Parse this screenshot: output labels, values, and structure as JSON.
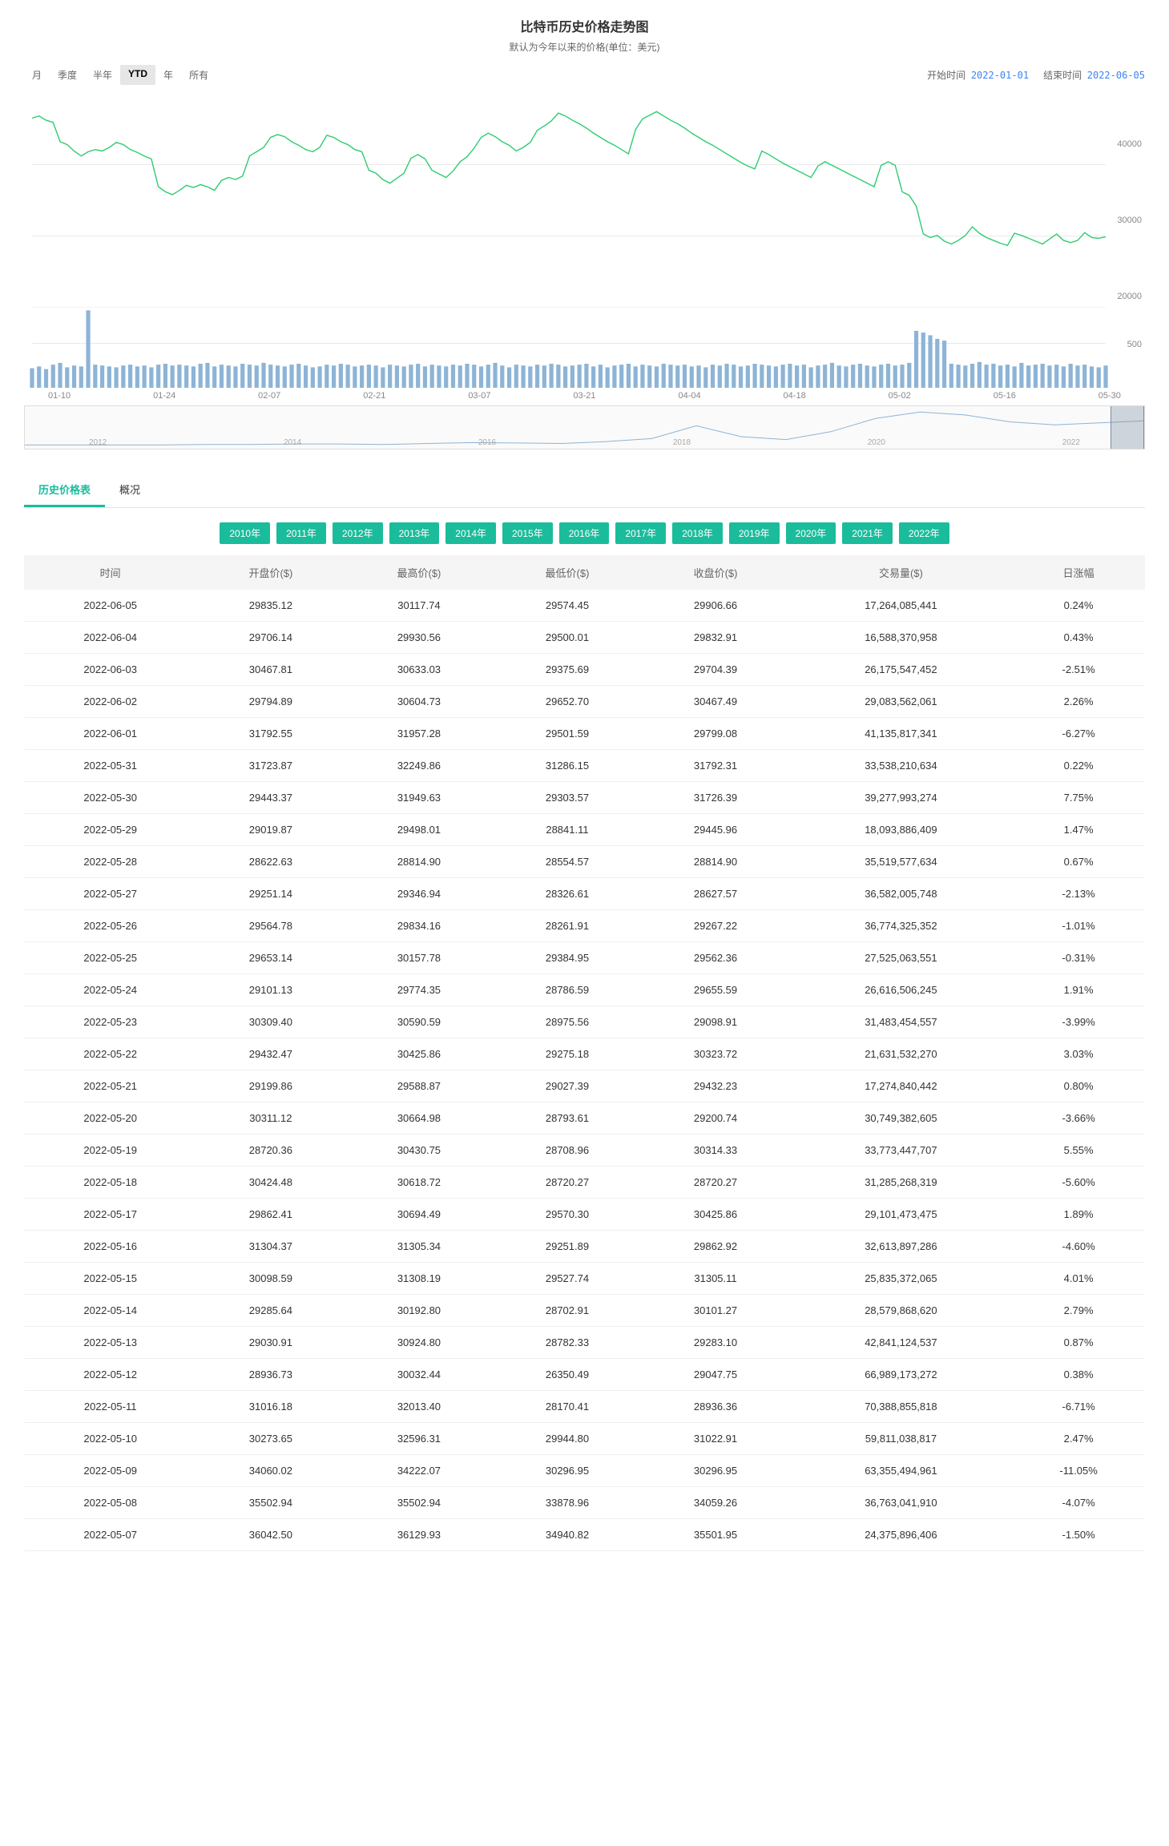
{
  "header": {
    "title": "比特币历史价格走势图",
    "subtitle": "默认为今年以来的价格(单位：美元)"
  },
  "range": {
    "buttons": [
      "月",
      "季度",
      "半年",
      "YTD",
      "年",
      "所有"
    ],
    "active": "YTD",
    "start_label": "开始时间",
    "start_value": "2022-01-01",
    "end_label": "结束时间",
    "end_value": "2022-06-05"
  },
  "price_chart": {
    "type": "line",
    "line_color": "#2ecc71",
    "line_width": 1.4,
    "grid_color": "#e8e8e8",
    "background_color": "#ffffff",
    "ylim": [
      20000,
      48000
    ],
    "yticks": [
      20000,
      30000,
      40000
    ],
    "series": [
      46500,
      46800,
      46200,
      45900,
      43200,
      42800,
      41900,
      41200,
      41800,
      42100,
      41900,
      42400,
      43100,
      42800,
      42100,
      41700,
      41200,
      40800,
      36900,
      36200,
      35800,
      36400,
      37100,
      36800,
      37200,
      36900,
      36400,
      37800,
      38200,
      37900,
      38400,
      41200,
      41800,
      42400,
      43800,
      44200,
      43900,
      43200,
      42700,
      42100,
      41800,
      42400,
      44100,
      43800,
      43200,
      42800,
      42100,
      41800,
      39200,
      38800,
      37900,
      37400,
      38100,
      38800,
      40900,
      41400,
      40800,
      39200,
      38700,
      38200,
      39100,
      40400,
      41100,
      42300,
      43800,
      44400,
      43900,
      43200,
      42700,
      41900,
      42400,
      43100,
      44800,
      45400,
      46100,
      47200,
      46800,
      46200,
      45700,
      45100,
      44400,
      43800,
      43200,
      42700,
      42100,
      41500,
      44900,
      46400,
      46900,
      47400,
      46800,
      46200,
      45700,
      45100,
      44400,
      43800,
      43200,
      42700,
      42100,
      41500,
      40900,
      40300,
      39800,
      39400,
      41900,
      41400,
      40800,
      40200,
      39700,
      39200,
      38700,
      38200,
      39800,
      40400,
      39900,
      39400,
      38900,
      38400,
      37900,
      37400,
      36900,
      39900,
      40400,
      39900,
      36200,
      35700,
      34200,
      30300,
      29800,
      30100,
      29300,
      28900,
      29400,
      30100,
      31300,
      30400,
      29800,
      29400,
      29000,
      28700,
      30400,
      30100,
      29700,
      29300,
      28900,
      29600,
      30300,
      29400,
      29100,
      29400,
      30500,
      29800,
      29700,
      29900
    ]
  },
  "volume_chart": {
    "type": "bar",
    "bar_color": "#8db4d6",
    "grid_color": "#e8e8e8",
    "ylim": [
      0,
      900
    ],
    "yticks": [
      500
    ],
    "series": [
      220,
      240,
      210,
      260,
      280,
      230,
      250,
      240,
      870,
      260,
      250,
      240,
      230,
      250,
      260,
      240,
      250,
      230,
      260,
      270,
      250,
      260,
      250,
      240,
      270,
      280,
      240,
      260,
      250,
      240,
      270,
      260,
      250,
      280,
      260,
      250,
      240,
      260,
      270,
      250,
      230,
      240,
      260,
      250,
      270,
      260,
      240,
      250,
      260,
      250,
      230,
      260,
      250,
      240,
      260,
      270,
      240,
      260,
      250,
      240,
      260,
      250,
      270,
      260,
      240,
      260,
      280,
      250,
      230,
      260,
      250,
      240,
      260,
      250,
      270,
      260,
      240,
      250,
      260,
      270,
      240,
      260,
      230,
      250,
      260,
      270,
      240,
      260,
      250,
      240,
      270,
      260,
      250,
      260,
      240,
      250,
      230,
      260,
      250,
      270,
      260,
      240,
      250,
      270,
      260,
      250,
      240,
      260,
      270,
      250,
      260,
      230,
      250,
      260,
      280,
      250,
      240,
      260,
      270,
      250,
      240,
      260,
      270,
      250,
      260,
      280,
      640,
      620,
      590,
      550,
      530,
      270,
      260,
      250,
      270,
      290,
      260,
      270,
      250,
      260,
      240,
      280,
      250,
      260,
      270,
      250,
      260,
      240,
      270,
      250,
      260,
      240,
      230,
      250
    ]
  },
  "xaxis_ticks": [
    "01-10",
    "01-24",
    "02-07",
    "02-21",
    "03-07",
    "03-21",
    "04-04",
    "04-18",
    "05-02",
    "05-16",
    "05-30"
  ],
  "navigator": {
    "years": [
      "2012",
      "2014",
      "2016",
      "2018",
      "2020",
      "2022"
    ],
    "line_color": "#8db4d6"
  },
  "tabs": {
    "items": [
      "历史价格表",
      "概况"
    ],
    "active": "历史价格表"
  },
  "year_pills": [
    "2010年",
    "2011年",
    "2012年",
    "2013年",
    "2014年",
    "2015年",
    "2016年",
    "2017年",
    "2018年",
    "2019年",
    "2020年",
    "2021年",
    "2022年"
  ],
  "table": {
    "columns": [
      "时间",
      "开盘价($)",
      "最高价($)",
      "最低价($)",
      "收盘价($)",
      "交易量($)",
      "日涨幅"
    ],
    "rows": [
      [
        "2022-06-05",
        "29835.12",
        "30117.74",
        "29574.45",
        "29906.66",
        "17,264,085,441",
        "0.24%"
      ],
      [
        "2022-06-04",
        "29706.14",
        "29930.56",
        "29500.01",
        "29832.91",
        "16,588,370,958",
        "0.43%"
      ],
      [
        "2022-06-03",
        "30467.81",
        "30633.03",
        "29375.69",
        "29704.39",
        "26,175,547,452",
        "-2.51%"
      ],
      [
        "2022-06-02",
        "29794.89",
        "30604.73",
        "29652.70",
        "30467.49",
        "29,083,562,061",
        "2.26%"
      ],
      [
        "2022-06-01",
        "31792.55",
        "31957.28",
        "29501.59",
        "29799.08",
        "41,135,817,341",
        "-6.27%"
      ],
      [
        "2022-05-31",
        "31723.87",
        "32249.86",
        "31286.15",
        "31792.31",
        "33,538,210,634",
        "0.22%"
      ],
      [
        "2022-05-30",
        "29443.37",
        "31949.63",
        "29303.57",
        "31726.39",
        "39,277,993,274",
        "7.75%"
      ],
      [
        "2022-05-29",
        "29019.87",
        "29498.01",
        "28841.11",
        "29445.96",
        "18,093,886,409",
        "1.47%"
      ],
      [
        "2022-05-28",
        "28622.63",
        "28814.90",
        "28554.57",
        "28814.90",
        "35,519,577,634",
        "0.67%"
      ],
      [
        "2022-05-27",
        "29251.14",
        "29346.94",
        "28326.61",
        "28627.57",
        "36,582,005,748",
        "-2.13%"
      ],
      [
        "2022-05-26",
        "29564.78",
        "29834.16",
        "28261.91",
        "29267.22",
        "36,774,325,352",
        "-1.01%"
      ],
      [
        "2022-05-25",
        "29653.14",
        "30157.78",
        "29384.95",
        "29562.36",
        "27,525,063,551",
        "-0.31%"
      ],
      [
        "2022-05-24",
        "29101.13",
        "29774.35",
        "28786.59",
        "29655.59",
        "26,616,506,245",
        "1.91%"
      ],
      [
        "2022-05-23",
        "30309.40",
        "30590.59",
        "28975.56",
        "29098.91",
        "31,483,454,557",
        "-3.99%"
      ],
      [
        "2022-05-22",
        "29432.47",
        "30425.86",
        "29275.18",
        "30323.72",
        "21,631,532,270",
        "3.03%"
      ],
      [
        "2022-05-21",
        "29199.86",
        "29588.87",
        "29027.39",
        "29432.23",
        "17,274,840,442",
        "0.80%"
      ],
      [
        "2022-05-20",
        "30311.12",
        "30664.98",
        "28793.61",
        "29200.74",
        "30,749,382,605",
        "-3.66%"
      ],
      [
        "2022-05-19",
        "28720.36",
        "30430.75",
        "28708.96",
        "30314.33",
        "33,773,447,707",
        "5.55%"
      ],
      [
        "2022-05-18",
        "30424.48",
        "30618.72",
        "28720.27",
        "28720.27",
        "31,285,268,319",
        "-5.60%"
      ],
      [
        "2022-05-17",
        "29862.41",
        "30694.49",
        "29570.30",
        "30425.86",
        "29,101,473,475",
        "1.89%"
      ],
      [
        "2022-05-16",
        "31304.37",
        "31305.34",
        "29251.89",
        "29862.92",
        "32,613,897,286",
        "-4.60%"
      ],
      [
        "2022-05-15",
        "30098.59",
        "31308.19",
        "29527.74",
        "31305.11",
        "25,835,372,065",
        "4.01%"
      ],
      [
        "2022-05-14",
        "29285.64",
        "30192.80",
        "28702.91",
        "30101.27",
        "28,579,868,620",
        "2.79%"
      ],
      [
        "2022-05-13",
        "29030.91",
        "30924.80",
        "28782.33",
        "29283.10",
        "42,841,124,537",
        "0.87%"
      ],
      [
        "2022-05-12",
        "28936.73",
        "30032.44",
        "26350.49",
        "29047.75",
        "66,989,173,272",
        "0.38%"
      ],
      [
        "2022-05-11",
        "31016.18",
        "32013.40",
        "28170.41",
        "28936.36",
        "70,388,855,818",
        "-6.71%"
      ],
      [
        "2022-05-10",
        "30273.65",
        "32596.31",
        "29944.80",
        "31022.91",
        "59,811,038,817",
        "2.47%"
      ],
      [
        "2022-05-09",
        "34060.02",
        "34222.07",
        "30296.95",
        "30296.95",
        "63,355,494,961",
        "-11.05%"
      ],
      [
        "2022-05-08",
        "35502.94",
        "35502.94",
        "33878.96",
        "34059.26",
        "36,763,041,910",
        "-4.07%"
      ],
      [
        "2022-05-07",
        "36042.50",
        "36129.93",
        "34940.82",
        "35501.95",
        "24,375,896,406",
        "-1.50%"
      ]
    ]
  }
}
